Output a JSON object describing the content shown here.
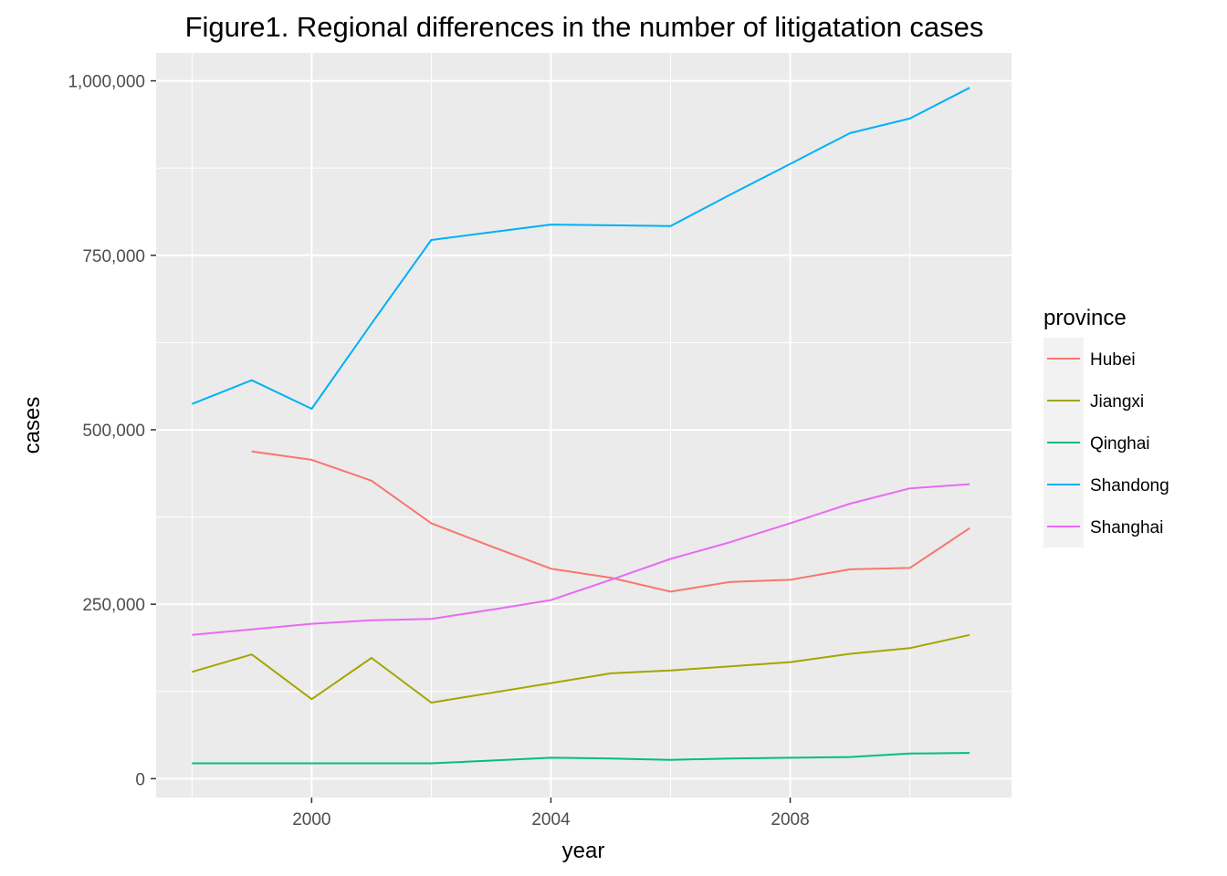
{
  "chart_data": {
    "type": "line",
    "title": "Figure1. Regional differences in the number of litigatation cases",
    "xlabel": "year",
    "ylabel": "cases",
    "xlim": [
      1997.4,
      2011.7
    ],
    "ylim": [
      -27000,
      1040000
    ],
    "x_ticks": [
      2000,
      2004,
      2008
    ],
    "x_tick_labels": [
      "2000",
      "2004",
      "2008"
    ],
    "y_ticks": [
      0,
      250000,
      500000,
      750000,
      1000000
    ],
    "y_tick_labels": [
      "0",
      "250,000",
      "500,000",
      "750,000",
      "1,000,000"
    ],
    "grid": true,
    "legend": {
      "title": "province",
      "position": "right"
    },
    "series": [
      {
        "name": "Hubei",
        "color": "#F8766D",
        "x": [
          1999,
          2000,
          2001,
          2002,
          2003,
          2004,
          2005,
          2006,
          2007,
          2008,
          2009,
          2010,
          2011
        ],
        "y": [
          469000,
          457000,
          427000,
          366000,
          333000,
          301000,
          288000,
          268000,
          282000,
          285000,
          300000,
          302000,
          359000
        ]
      },
      {
        "name": "Jiangxi",
        "color": "#A3A500",
        "x": [
          1998,
          1999,
          2000,
          2001,
          2002,
          2003,
          2004,
          2005,
          2006,
          2007,
          2008,
          2009,
          2010,
          2011
        ],
        "y": [
          153000,
          178000,
          114000,
          173000,
          109000,
          123000,
          137000,
          151000,
          155000,
          161000,
          167000,
          179000,
          187000,
          206000
        ]
      },
      {
        "name": "Qinghai",
        "color": "#00BF7D",
        "x": [
          1998,
          1999,
          2000,
          2001,
          2002,
          2003,
          2004,
          2005,
          2006,
          2007,
          2008,
          2009,
          2010,
          2011
        ],
        "y": [
          22000,
          22000,
          22000,
          22000,
          22000,
          26000,
          30000,
          29000,
          27000,
          29000,
          30000,
          31000,
          36000,
          37000
        ]
      },
      {
        "name": "Shandong",
        "color": "#00B0F6",
        "x": [
          1998,
          1999,
          2000,
          2001,
          2002,
          2003,
          2004,
          2005,
          2006,
          2007,
          2008,
          2009,
          2010,
          2011
        ],
        "y": [
          537000,
          571000,
          530000,
          652000,
          772000,
          783000,
          794000,
          793000,
          792000,
          837000,
          881000,
          925000,
          946000,
          990000
        ]
      },
      {
        "name": "Shanghai",
        "color": "#E76BF3",
        "x": [
          1998,
          1999,
          2000,
          2001,
          2002,
          2003,
          2004,
          2005,
          2006,
          2007,
          2008,
          2009,
          2010,
          2011
        ],
        "y": [
          206000,
          214000,
          222000,
          227000,
          229000,
          242000,
          256000,
          285000,
          315000,
          339000,
          366000,
          394000,
          416000,
          422000
        ]
      }
    ]
  }
}
